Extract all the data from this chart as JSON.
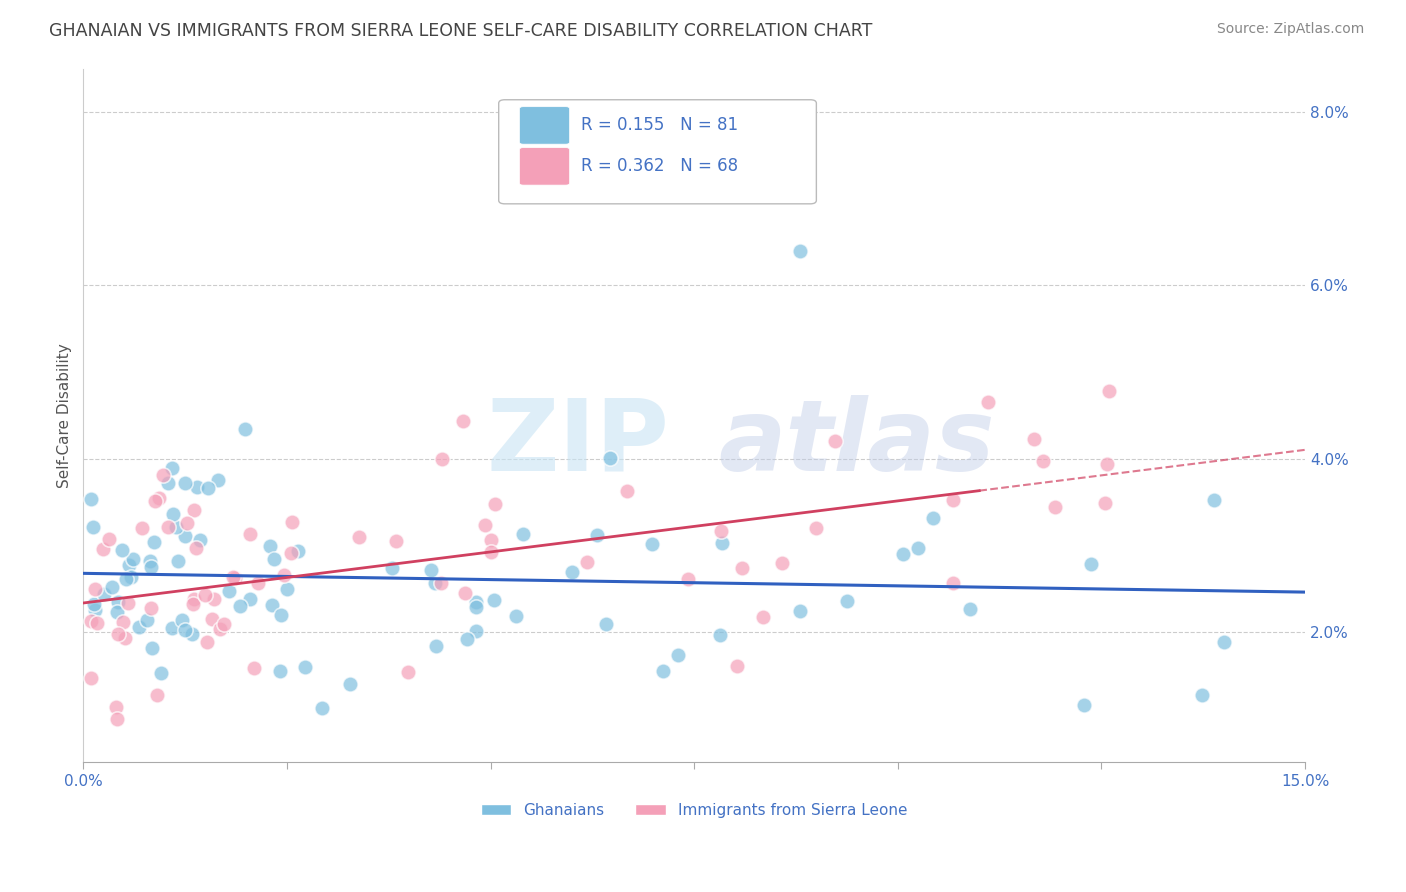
{
  "title": "GHANAIAN VS IMMIGRANTS FROM SIERRA LEONE SELF-CARE DISABILITY CORRELATION CHART",
  "source": "Source: ZipAtlas.com",
  "ylabel": "Self-Care Disability",
  "xlim": [
    0.0,
    0.15
  ],
  "ylim": [
    0.005,
    0.085
  ],
  "yticks": [
    0.02,
    0.04,
    0.06,
    0.08
  ],
  "yticklabels": [
    "2.0%",
    "4.0%",
    "6.0%",
    "8.0%"
  ],
  "blue_R": 0.155,
  "blue_N": 81,
  "pink_R": 0.362,
  "pink_N": 68,
  "blue_color": "#7fbfdf",
  "pink_color": "#f4a0b8",
  "trend_blue_color": "#3060c0",
  "trend_pink_color": "#d04060",
  "legend_blue_label": "Ghanaians",
  "legend_pink_label": "Immigrants from Sierra Leone",
  "background_color": "#ffffff",
  "grid_color": "#cccccc",
  "axis_color": "#4472c4",
  "title_color": "#444444"
}
